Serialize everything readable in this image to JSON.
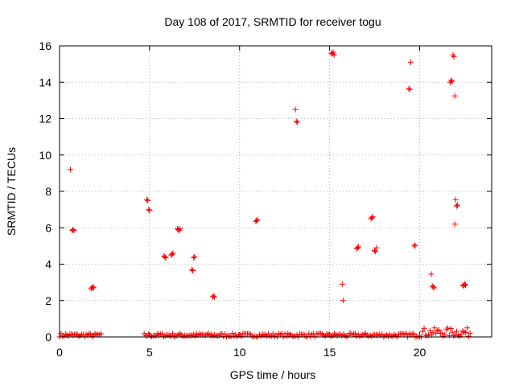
{
  "chart_data": {
    "type": "scatter",
    "title": "Day 108 of 2017, SRMTID for receiver togu",
    "xlabel": "GPS time / hours",
    "ylabel": "SRMTID / TECUs",
    "xlim": [
      0,
      24
    ],
    "ylim": [
      0,
      16
    ],
    "xticks": [
      0,
      5,
      10,
      15,
      20
    ],
    "yticks": [
      0,
      2,
      4,
      6,
      8,
      10,
      12,
      14,
      16
    ],
    "grid": true,
    "marker": "plus",
    "color": "#ff0000",
    "clusters": [
      {
        "x": [
          0.6
        ],
        "y": [
          9.2
        ]
      },
      {
        "x": [
          0.7,
          0.75,
          0.8
        ],
        "y": [
          5.85,
          5.9,
          5.85
        ]
      },
      {
        "x": [
          1.75,
          1.8,
          1.85,
          1.9
        ],
        "y": [
          2.65,
          2.7,
          2.75,
          2.7
        ]
      },
      {
        "x": [
          4.85,
          4.9
        ],
        "y": [
          7.55,
          7.5
        ]
      },
      {
        "x": [
          4.95,
          5.0
        ],
        "y": [
          7.0,
          6.95
        ]
      },
      {
        "x": [
          5.8,
          5.85,
          5.9
        ],
        "y": [
          4.45,
          4.4,
          4.35
        ]
      },
      {
        "x": [
          6.2,
          6.25,
          6.3
        ],
        "y": [
          4.5,
          4.55,
          4.6
        ]
      },
      {
        "x": [
          6.55,
          6.6,
          6.65,
          6.7
        ],
        "y": [
          5.95,
          5.9,
          5.85,
          5.95
        ]
      },
      {
        "x": [
          7.35,
          7.4
        ],
        "y": [
          3.7,
          3.65
        ]
      },
      {
        "x": [
          7.45,
          7.5
        ],
        "y": [
          4.35,
          4.4
        ]
      },
      {
        "x": [
          8.5,
          8.55,
          8.6
        ],
        "y": [
          2.2,
          2.25,
          2.2
        ]
      },
      {
        "x": [
          10.9,
          10.95,
          11.0
        ],
        "y": [
          6.35,
          6.4,
          6.45
        ]
      },
      {
        "x": [
          13.1
        ],
        "y": [
          12.5
        ]
      },
      {
        "x": [
          13.15,
          13.2
        ],
        "y": [
          11.85,
          11.8
        ]
      },
      {
        "x": [
          15.1,
          15.15,
          15.2,
          15.25
        ],
        "y": [
          15.6,
          15.55,
          15.65,
          15.5
        ]
      },
      {
        "x": [
          15.7
        ],
        "y": [
          2.9
        ]
      },
      {
        "x": [
          15.75
        ],
        "y": [
          2.0
        ]
      },
      {
        "x": [
          16.5,
          16.55,
          16.6
        ],
        "y": [
          4.85,
          4.9,
          4.95
        ]
      },
      {
        "x": [
          17.3,
          17.35,
          17.4
        ],
        "y": [
          6.5,
          6.55,
          6.6
        ]
      },
      {
        "x": [
          17.5,
          17.55,
          17.6
        ],
        "y": [
          4.75,
          4.7,
          4.9
        ]
      },
      {
        "x": [
          19.4,
          19.45
        ],
        "y": [
          13.65,
          13.6
        ]
      },
      {
        "x": [
          19.5
        ],
        "y": [
          15.1
        ]
      },
      {
        "x": [
          19.7,
          19.75
        ],
        "y": [
          5.0,
          5.05
        ]
      },
      {
        "x": [
          20.65
        ],
        "y": [
          3.45
        ]
      },
      {
        "x": [
          20.7,
          20.75,
          20.8
        ],
        "y": [
          2.8,
          2.75,
          2.7
        ]
      },
      {
        "x": [
          21.7,
          21.75,
          21.8
        ],
        "y": [
          14.0,
          14.1,
          14.05
        ]
      },
      {
        "x": [
          21.85,
          21.9
        ],
        "y": [
          15.5,
          15.4
        ]
      },
      {
        "x": [
          21.95
        ],
        "y": [
          13.25
        ]
      },
      {
        "x": [
          21.95
        ],
        "y": [
          6.2
        ]
      },
      {
        "x": [
          22.0
        ],
        "y": [
          7.55
        ]
      },
      {
        "x": [
          22.05,
          22.1
        ],
        "y": [
          7.2,
          7.25
        ]
      },
      {
        "x": [
          22.4,
          22.45,
          22.5,
          22.55
        ],
        "y": [
          2.85,
          2.8,
          2.9,
          2.85
        ]
      }
    ],
    "baseline_segments": [
      {
        "x_start": 0.0,
        "x_end": 2.3,
        "y_max": 0.2
      },
      {
        "x_start": 4.7,
        "x_end": 20.0,
        "y_max": 0.2
      },
      {
        "x_start": 20.0,
        "x_end": 22.8,
        "y_max": 0.5
      }
    ]
  }
}
